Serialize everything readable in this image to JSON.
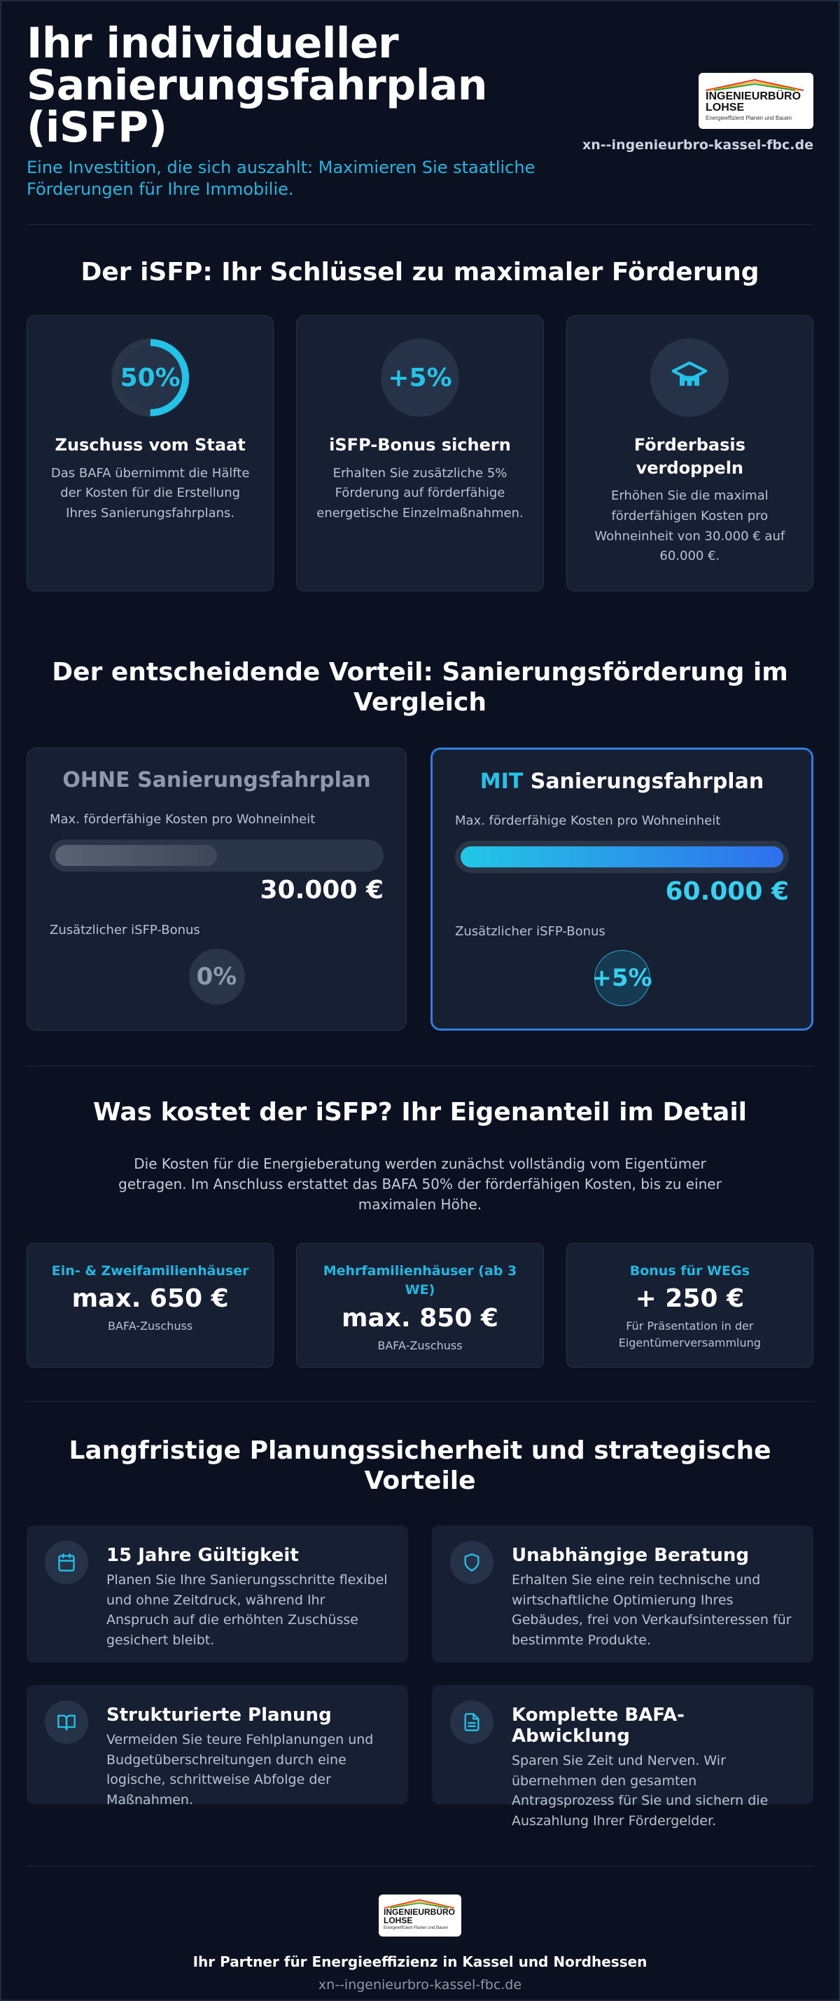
{
  "header": {
    "title_line1": "Ihr individueller",
    "title_line2": "Sanierungsfahrplan",
    "title_line3": "(iSFP)",
    "subtitle": "Eine Investition, die sich auszahlt: Maximieren Sie staatliche Förderungen für Ihre Immobilie.",
    "logo_line1": "INGENIEURBÜRO",
    "logo_line2": "LOHSE",
    "logo_tagline": "Energieeffizient Planen und Bauen",
    "domain": "xn--ingenieurbro-kassel-fbc.de"
  },
  "section1": {
    "title": "Der iSFP: Ihr Schlüssel zu maximaler Förderung",
    "cards": [
      {
        "badge": "50%",
        "progress": 0.5,
        "title": "Zuschuss vom Staat",
        "text": "Das BAFA übernimmt die Hälfte der Kosten für die Erstellung Ihres Sanierungsfahrplans."
      },
      {
        "badge": "+5%",
        "title": "iSFP-Bonus sichern",
        "text": "Erhalten Sie zusätzliche 5% Förderung auf förderfähige energetische Einzelmaßnahmen."
      },
      {
        "icon": "graduation-cap-icon",
        "title": "Förderbasis verdoppeln",
        "text": "Erhöhen Sie die maximal förderfähigen Kosten pro Wohneinheit von 30.000 € auf 60.000 €."
      }
    ]
  },
  "section2": {
    "title": "Der entscheidende Vorteil: Sanierungsförderung im Vergleich",
    "without": {
      "head_em": "OHNE",
      "head_rest": " Sanierungsfahrplan",
      "cost_label": "Max. förderfähige Kosten pro Wohneinheit",
      "fill_fraction": 0.5,
      "amount": "30.000 €",
      "bonus_label": "Zusätzlicher iSFP-Bonus",
      "bonus": "0%"
    },
    "with": {
      "head_em": "MIT",
      "head_rest": " Sanierungsfahrplan",
      "cost_label": "Max. förderfähige Kosten pro Wohneinheit",
      "fill_fraction": 1.0,
      "amount": "60.000 €",
      "bonus_label": "Zusätzlicher iSFP-Bonus",
      "bonus": "+5%"
    }
  },
  "section3": {
    "title": "Was kostet der iSFP? Ihr Eigenanteil im Detail",
    "intro": "Die Kosten für die Energieberatung werden zunächst vollständig vom Eigentümer getragen. Im Anschluss erstattet das BAFA 50% der förderfähigen Kosten, bis zu einer maximalen Höhe.",
    "cards": [
      {
        "head": "Ein- & Zweifamilienhäuser",
        "amount": "max. 650 €",
        "note": "BAFA-Zuschuss"
      },
      {
        "head": "Mehrfamilienhäuser (ab 3 WE)",
        "amount": "max. 850 €",
        "note": "BAFA-Zuschuss"
      },
      {
        "head": "Bonus für WEGs",
        "amount": "+ 250 €",
        "note": "Für Präsentation in der Eigentümerversammlung"
      }
    ]
  },
  "section4": {
    "title": "Langfristige Planungssicherheit und strategische Vorteile",
    "items": [
      {
        "icon": "calendar-icon",
        "title": "15 Jahre Gültigkeit",
        "text": "Planen Sie Ihre Sanierungsschritte flexibel und ohne Zeitdruck, während Ihr Anspruch auf die erhöhten Zuschüsse gesichert bleibt."
      },
      {
        "icon": "shield-icon",
        "title": "Unabhängige Beratung",
        "text": "Erhalten Sie eine rein technische und wirtschaftliche Optimierung Ihres Gebäudes, frei von Verkaufsinteressen für bestimmte Produkte."
      },
      {
        "icon": "book-icon",
        "title": "Strukturierte Planung",
        "text": "Vermeiden Sie teure Fehlplanungen und Budgetüberschreitungen durch eine logische, schrittweise Abfolge der Maßnahmen."
      },
      {
        "icon": "document-icon",
        "title": "Komplette BAFA-Abwicklung",
        "text": "Sparen Sie Zeit und Nerven. Wir übernehmen den gesamten Antragsprozess für Sie und sichern die Auszahlung Ihrer Fördergelder."
      }
    ]
  },
  "footer": {
    "tagline": "Ihr Partner für Energieeffizienz in Kassel und Nordhessen",
    "domain": "xn--ingenieurbro-kassel-fbc.de"
  },
  "colors": {
    "background": "#0b1120",
    "card": "#172032",
    "accent_cyan": "#22c3e6",
    "accent_blue": "#2f6fed"
  }
}
